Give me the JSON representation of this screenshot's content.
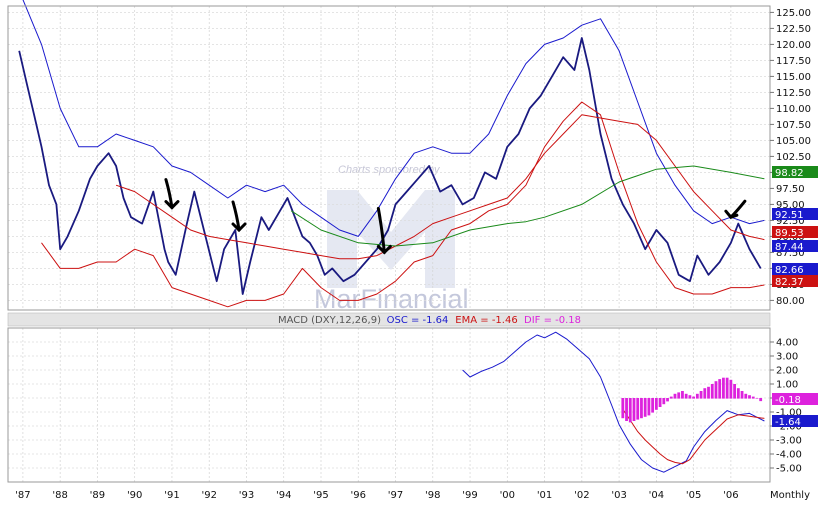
{
  "chart_data": [
    {
      "type": "line",
      "panel": "price",
      "x_ticks": [
        "'87",
        "'88",
        "'89",
        "'90",
        "'91",
        "'92",
        "'93",
        "'94",
        "'95",
        "'96",
        "'97",
        "'98",
        "'99",
        "'00",
        "'01",
        "'02",
        "'03",
        "'04",
        "'05",
        "'06",
        "Monthly"
      ],
      "y_ticks": [
        "125.00",
        "122.50",
        "120.00",
        "117.50",
        "115.00",
        "112.50",
        "110.00",
        "107.50",
        "105.00",
        "102.50",
        "100.00",
        "97.50",
        "95.00",
        "92.50",
        "90.00",
        "87.50",
        "85.00",
        "82.50",
        "80.00"
      ],
      "ylim": [
        78.5,
        126
      ],
      "grid": true,
      "series": [
        {
          "key": "price",
          "color": "#1a1a80",
          "x": [
            1986.9,
            1987.1,
            1987.3,
            1987.5,
            1987.7,
            1987.9,
            1988.0,
            1988.2,
            1988.5,
            1988.8,
            1989.0,
            1989.3,
            1989.5,
            1989.7,
            1989.9,
            1990.2,
            1990.5,
            1990.8,
            1990.9,
            1991.1,
            1991.4,
            1991.6,
            1991.9,
            1992.2,
            1992.4,
            1992.7,
            1992.9,
            1993.1,
            1993.4,
            1993.6,
            1993.9,
            1994.1,
            1994.3,
            1994.5,
            1994.7,
            1994.9,
            1995.1,
            1995.3,
            1995.6,
            1995.9,
            1996.2,
            1996.5,
            1996.8,
            1997.0,
            1997.3,
            1997.6,
            1997.9,
            1998.2,
            1998.5,
            1998.8,
            1999.1,
            1999.4,
            1999.7,
            2000.0,
            2000.3,
            2000.6,
            2000.9,
            2001.2,
            2001.5,
            2001.8,
            2002.0,
            2002.2,
            2002.5,
            2002.8,
            2003.1,
            2003.4,
            2003.7,
            2004.0,
            2004.3,
            2004.6,
            2004.9,
            2005.1,
            2005.4,
            2005.7,
            2006.0,
            2006.2,
            2006.5,
            2006.8
          ],
          "y": [
            119,
            114,
            109,
            104,
            98,
            95,
            88,
            90,
            94,
            99,
            101,
            103,
            101,
            96,
            93,
            92,
            97,
            88,
            86,
            84,
            92,
            97,
            90,
            83,
            88,
            91,
            81,
            86,
            93,
            91,
            94,
            96,
            93,
            90,
            89,
            87,
            84,
            85,
            83,
            84,
            86,
            88,
            91,
            95,
            97,
            99,
            101,
            97,
            98,
            95,
            96,
            100,
            99,
            104,
            106,
            110,
            112,
            115,
            118,
            116,
            121,
            116,
            106,
            99,
            95,
            92,
            88,
            91,
            89,
            84,
            83,
            87,
            84,
            86,
            89,
            92,
            88,
            85
          ]
        },
        {
          "key": "upper-band",
          "color": "#1a1acd",
          "x": [
            1987.0,
            1987.5,
            1988.0,
            1988.5,
            1989.0,
            1989.5,
            1990.0,
            1990.5,
            1991.0,
            1991.5,
            1992.0,
            1992.5,
            1993.0,
            1993.5,
            1994.0,
            1994.5,
            1995.0,
            1995.5,
            1996.0,
            1996.5,
            1997.0,
            1997.5,
            1998.0,
            1998.5,
            1999.0,
            1999.5,
            2000.0,
            2000.5,
            2001.0,
            2001.5,
            2002.0,
            2002.5,
            2003.0,
            2003.5,
            2004.0,
            2004.5,
            2005.0,
            2005.5,
            2006.0,
            2006.5,
            2006.9
          ],
          "y": [
            127,
            120,
            110,
            104,
            104,
            106,
            105,
            104,
            101,
            100,
            98,
            96,
            98,
            97,
            98,
            95,
            93,
            91,
            90,
            94,
            99,
            103,
            104,
            103,
            103,
            106,
            112,
            117,
            120,
            121,
            123,
            124,
            119,
            111,
            103,
            98,
            94,
            92,
            93,
            92,
            92.5
          ]
        },
        {
          "key": "lower-band",
          "color": "#cc1111",
          "x": [
            1987.5,
            1988.0,
            1988.5,
            1989.0,
            1989.5,
            1990.0,
            1990.5,
            1991.0,
            1991.5,
            1992.0,
            1992.5,
            1993.0,
            1993.5,
            1994.0,
            1994.5,
            1995.0,
            1995.5,
            1996.0,
            1996.5,
            1997.0,
            1997.5,
            1998.0,
            1998.5,
            1999.0,
            1999.5,
            2000.0,
            2000.5,
            2001.0,
            2001.5,
            2002.0,
            2002.5,
            2003.0,
            2003.5,
            2004.0,
            2004.5,
            2005.0,
            2005.5,
            2006.0,
            2006.5,
            2006.9
          ],
          "y": [
            89,
            85,
            85,
            86,
            86,
            88,
            87,
            82,
            81,
            80,
            79,
            80,
            80,
            81,
            85,
            82,
            80,
            80,
            81,
            83,
            86,
            87,
            91,
            92,
            94,
            95,
            98,
            104,
            108,
            111,
            109,
            100,
            92,
            86,
            82,
            81,
            81,
            82,
            82,
            82.4
          ]
        },
        {
          "key": "moving-average-short",
          "color": "#cc1111",
          "x": [
            1989.5,
            1990.0,
            1990.5,
            1991.0,
            1991.5,
            1992.0,
            1992.5,
            1993.0,
            1993.5,
            1994.0,
            1994.5,
            1995.0,
            1995.5,
            1996.0,
            1996.5,
            1997.0,
            1997.5,
            1998.0,
            1998.5,
            1999.0,
            1999.5,
            2000.0,
            2000.5,
            2001.0,
            2001.5,
            2002.0,
            2002.5,
            2003.0,
            2003.5,
            2004.0,
            2004.5,
            2005.0,
            2005.5,
            2006.0,
            2006.5,
            2006.9
          ],
          "y": [
            98,
            97,
            95,
            93,
            91,
            90,
            89.5,
            89,
            88.5,
            88,
            87.5,
            87,
            86.5,
            86.5,
            87,
            88.5,
            90,
            92,
            93,
            94,
            95,
            96,
            99,
            103,
            106,
            109,
            108.5,
            108,
            107.5,
            105,
            101,
            97,
            94,
            91,
            90,
            89.5
          ]
        },
        {
          "key": "moving-average-long",
          "color": "#1a8a1a",
          "x": [
            1994.2,
            1995.0,
            1996.0,
            1997.0,
            1998.0,
            1999.0,
            2000.0,
            2000.5,
            2001.0,
            2002.0,
            2003.0,
            2004.0,
            2005.0,
            2006.0,
            2006.9
          ],
          "y": [
            94,
            91,
            89,
            88.5,
            89,
            91,
            92,
            92.3,
            93,
            95,
            98.5,
            100.5,
            101,
            100,
            99
          ]
        }
      ],
      "value_labels": [
        {
          "text": "98.82",
          "color": "#1a8a1a"
        },
        {
          "text": "92.51",
          "color": "#1a1acd"
        },
        {
          "text": "89.53",
          "color": "#cc1111"
        },
        {
          "text": "87.44",
          "color": "#1a1acd"
        },
        {
          "text": "82.66",
          "color": "#1a1acd"
        },
        {
          "text": "82.37",
          "color": "#cc1111"
        }
      ],
      "annotations": [
        {
          "kind": "arrow",
          "x": 1991.0,
          "y": 94.5
        },
        {
          "kind": "arrow",
          "x": 1992.8,
          "y": 91.0
        },
        {
          "kind": "arrow",
          "x": 1996.7,
          "y": 87.5
        },
        {
          "kind": "arrow",
          "x": 2006.0,
          "y": 93.0
        }
      ],
      "watermark": {
        "text": "MarFinancial",
        "sponsor": "Charts sponsored by"
      }
    },
    {
      "type": "line",
      "panel": "macd",
      "title": "MACD (DXY,12,26,9)",
      "legend": [
        {
          "label": "OSC = -1.64",
          "color": "#1a1acd"
        },
        {
          "label": "EMA = -1.46",
          "color": "#cc1111"
        },
        {
          "label": "DIF = -0.18",
          "color": "#dd22dd"
        }
      ],
      "y_ticks": [
        "4.00",
        "3.00",
        "2.00",
        "1.00",
        "0.00",
        "-1.00",
        "-2.00",
        "-3.00",
        "-4.00",
        "-5.00"
      ],
      "ylim": [
        -6,
        5
      ],
      "grid": true,
      "series": [
        {
          "key": "osc",
          "color": "#1a1acd",
          "x": [
            1998.8,
            1999.0,
            1999.3,
            1999.6,
            1999.9,
            2000.2,
            2000.5,
            2000.8,
            2001.0,
            2001.3,
            2001.6,
            2001.9,
            2002.2,
            2002.5,
            2002.8,
            2003.0,
            2003.3,
            2003.6,
            2003.9,
            2004.2,
            2004.5,
            2004.8,
            2005.0,
            2005.3,
            2005.6,
            2005.9,
            2006.2,
            2006.5,
            2006.9
          ],
          "y": [
            2.0,
            1.5,
            1.9,
            2.2,
            2.6,
            3.3,
            4.0,
            4.5,
            4.3,
            4.7,
            4.2,
            3.5,
            2.8,
            1.5,
            -0.5,
            -1.9,
            -3.3,
            -4.4,
            -5.0,
            -5.3,
            -4.9,
            -4.5,
            -3.5,
            -2.4,
            -1.6,
            -0.9,
            -1.2,
            -1.1,
            -1.64
          ]
        },
        {
          "key": "ema",
          "color": "#cc1111",
          "x": [
            2003.1,
            2003.3,
            2003.5,
            2003.7,
            2003.9,
            2004.1,
            2004.3,
            2004.5,
            2004.7,
            2004.9,
            2005.1,
            2005.3,
            2005.5,
            2005.7,
            2005.9,
            2006.2,
            2006.5,
            2006.9
          ],
          "y": [
            -0.8,
            -1.6,
            -2.4,
            -3.0,
            -3.5,
            -4.0,
            -4.4,
            -4.6,
            -4.7,
            -4.4,
            -3.7,
            -3.0,
            -2.5,
            -2.0,
            -1.5,
            -1.2,
            -1.3,
            -1.46
          ]
        },
        {
          "key": "dif",
          "color": "#dd22dd",
          "kind": "histogram",
          "x": [
            2003.1,
            2003.2,
            2003.3,
            2003.4,
            2003.5,
            2003.6,
            2003.7,
            2003.8,
            2003.9,
            2004.0,
            2004.1,
            2004.2,
            2004.3,
            2004.4,
            2004.5,
            2004.6,
            2004.7,
            2004.8,
            2004.9,
            2005.0,
            2005.1,
            2005.2,
            2005.3,
            2005.4,
            2005.5,
            2005.6,
            2005.7,
            2005.8,
            2005.9,
            2006.0,
            2006.1,
            2006.2,
            2006.3,
            2006.4,
            2006.5,
            2006.6,
            2006.7,
            2006.8
          ],
          "y": [
            -1.4,
            -1.6,
            -1.7,
            -1.6,
            -1.5,
            -1.4,
            -1.3,
            -1.2,
            -1.0,
            -0.8,
            -0.6,
            -0.4,
            -0.2,
            0.1,
            0.3,
            0.4,
            0.5,
            0.3,
            0.2,
            0.1,
            0.3,
            0.5,
            0.7,
            0.8,
            1.0,
            1.2,
            1.35,
            1.45,
            1.45,
            1.3,
            1.0,
            0.7,
            0.5,
            0.3,
            0.2,
            0.1,
            0.0,
            -0.18
          ]
        }
      ],
      "value_labels": [
        {
          "text": "-0.18",
          "color": "#dd22dd"
        },
        {
          "text": "-1.64",
          "color": "#1a1acd"
        }
      ]
    }
  ]
}
